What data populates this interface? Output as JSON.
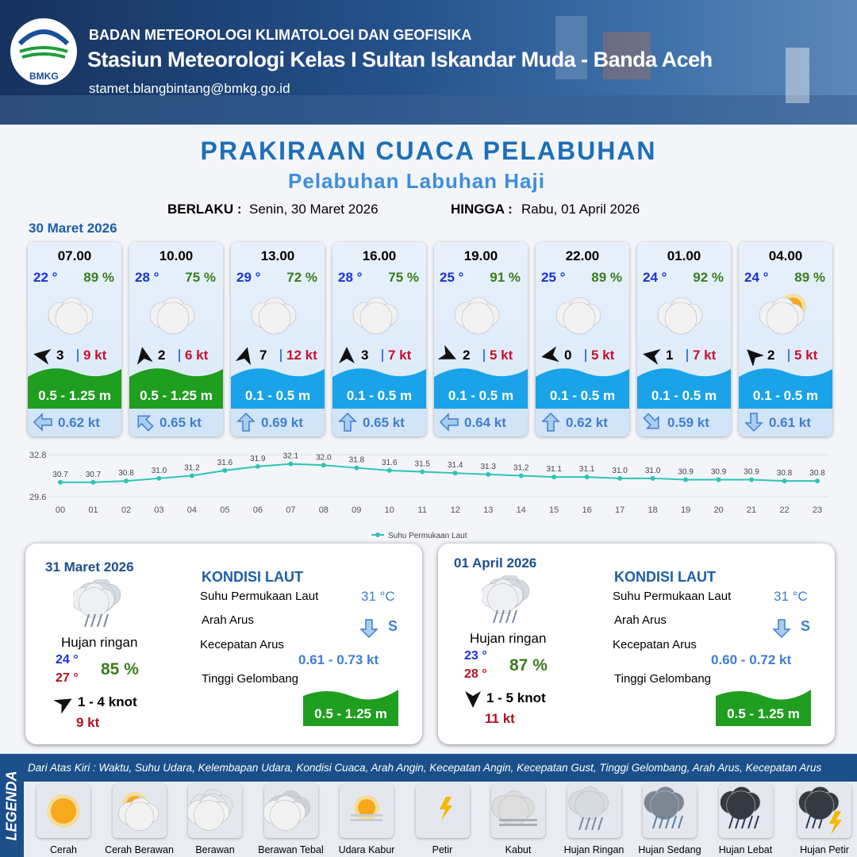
{
  "header": {
    "logo": "BMKG",
    "agency": "BADAN METEOROLOGI KLIMATOLOGI DAN GEOFISIKA",
    "station": "Stasiun Meteorologi Kelas I Sultan Iskandar Muda - Banda Aceh",
    "email": "stamet.blangbintang@bmkg.go.id"
  },
  "title": "PRAKIRAAN CUACA PELABUHAN",
  "subtitle": "Pelabuhan Labuhan Haji",
  "validity": {
    "from_label": "BERLAKU :",
    "from": "Senin, 30 Maret 2026",
    "to_label": "HINGGA :",
    "to": "Rabu, 01 April 2026"
  },
  "date": "30 Maret 2026",
  "forecast": [
    {
      "time": "07.00",
      "temp": "22 °",
      "humidity": "89 %",
      "wind_speed": 3,
      "gust": "9 kt",
      "wave": "0.5 - 1.25 m",
      "wave_color": "#1f9e1f",
      "current": "0.62 kt"
    },
    {
      "time": "10.00",
      "temp": "28 °",
      "humidity": "75 %",
      "wind_speed": 2,
      "gust": "6 kt",
      "wave": "0.5 - 1.25 m",
      "wave_color": "#1f9e1f",
      "current": "0.65 kt"
    },
    {
      "time": "13.00",
      "temp": "29 °",
      "humidity": "72 %",
      "wind_speed": 7,
      "gust": "12 kt",
      "wave": "0.1 - 0.5 m",
      "wave_color": "#1aa3e8",
      "current": "0.69 kt"
    },
    {
      "time": "16.00",
      "temp": "28 °",
      "humidity": "75 %",
      "wind_speed": 3,
      "gust": "7 kt",
      "wave": "0.1 - 0.5 m",
      "wave_color": "#1aa3e8",
      "current": "0.65 kt"
    },
    {
      "time": "19.00",
      "temp": "25 °",
      "humidity": "91 %",
      "wind_speed": 2,
      "gust": "5 kt",
      "wave": "0.1 - 0.5 m",
      "wave_color": "#1aa3e8",
      "current": "0.64 kt"
    },
    {
      "time": "22.00",
      "temp": "25 °",
      "humidity": "89 %",
      "wind_speed": 0,
      "gust": "5 kt",
      "wave": "0.1 - 0.5 m",
      "wave_color": "#1aa3e8",
      "current": "0.62 kt"
    },
    {
      "time": "01.00",
      "temp": "24 °",
      "humidity": "92 %",
      "wind_speed": 1,
      "gust": "7 kt",
      "wave": "0.1 - 0.5 m",
      "wave_color": "#1aa3e8",
      "current": "0.59 kt"
    },
    {
      "time": "04.00",
      "temp": "24 °",
      "humidity": "89 %",
      "wind_speed": 2,
      "gust": "5 kt",
      "wave": "0.1 - 0.5 m",
      "wave_color": "#1aa3e8",
      "current": "0.61 kt"
    }
  ],
  "chart_data": {
    "type": "line",
    "categories": [
      "00",
      "01",
      "02",
      "03",
      "04",
      "05",
      "06",
      "07",
      "08",
      "09",
      "10",
      "11",
      "12",
      "13",
      "14",
      "15",
      "16",
      "17",
      "18",
      "19",
      "20",
      "21",
      "22",
      "23"
    ],
    "series": [
      {
        "name": "Suhu Permukaan Laut",
        "color": "#2ec4b6",
        "values": [
          30.7,
          30.7,
          30.8,
          31.0,
          31.2,
          31.6,
          31.9,
          32.1,
          32.0,
          31.8,
          31.6,
          31.5,
          31.4,
          31.3,
          31.2,
          31.1,
          31.1,
          31.0,
          31.0,
          30.9,
          30.9,
          30.9,
          30.8,
          30.8
        ],
        "value_labels": [
          "30.7",
          "30.7",
          "30.8",
          "31.0",
          "31.2",
          "31.6",
          "31.9",
          "32.1",
          "32.0",
          "31.8",
          "31.6",
          "31.5",
          "31.4",
          "31.3",
          "31.2",
          "31.1",
          "31.1",
          "31.0",
          "31.0",
          "30.9",
          "30.9",
          "30.9",
          "30.8",
          "30.8"
        ]
      }
    ],
    "ylim": [
      29.6,
      32.8
    ],
    "yticks": [
      29.6,
      32.8
    ],
    "grid": true,
    "legend": "bottom"
  },
  "daily": [
    {
      "date": "31 Maret 2026",
      "condition": "Hujan ringan",
      "temp_min": "24 °",
      "temp_max": "27 °",
      "humidity": "85 %",
      "wind": "1  - 4 knot",
      "gust": "9 kt",
      "sea_title": "KONDISI LAUT",
      "sst_label": "Suhu Permukaan Laut",
      "sst": "31 °C",
      "current_dir_label": "Arah Arus",
      "current_dir": "S",
      "current_speed_label": "Kecepatan Arus",
      "current_speed": "0.61  - 0.73 kt",
      "wave_label": "Tinggi Gelombang",
      "wave": "0.5 - 1.25 m"
    },
    {
      "date": "01 April 2026",
      "condition": "Hujan ringan",
      "temp_min": "23 °",
      "temp_max": "28 °",
      "humidity": "87 %",
      "wind": "1  - 5 knot",
      "gust": "11 kt",
      "sea_title": "KONDISI LAUT",
      "sst_label": "Suhu Permukaan Laut",
      "sst": "31 °C",
      "current_dir_label": "Arah Arus",
      "current_dir": "S",
      "current_speed_label": "Kecepatan Arus",
      "current_speed": "0.60  - 0.72 kt",
      "wave_label": "Tinggi Gelombang",
      "wave": "0.5 - 1.25 m"
    }
  ],
  "legend": {
    "title": "LEGENDA",
    "description": "Dari Atas Kiri : Waktu, Suhu Udara, Kelembapan Udara, Kondisi Cuaca, Arah Angin, Kecepatan Angin, Kecepatan Gust, Tinggi Gelombang, Arah Arus, Kecepatan Arus",
    "items": [
      "Cerah",
      "Cerah Berawan",
      "Berawan",
      "Berawan Tebal",
      "Udara Kabur",
      "Petir",
      "Kabut",
      "Hujan Ringan",
      "Hujan Sedang",
      "Hujan Lebat",
      "Hujan Petir"
    ]
  }
}
